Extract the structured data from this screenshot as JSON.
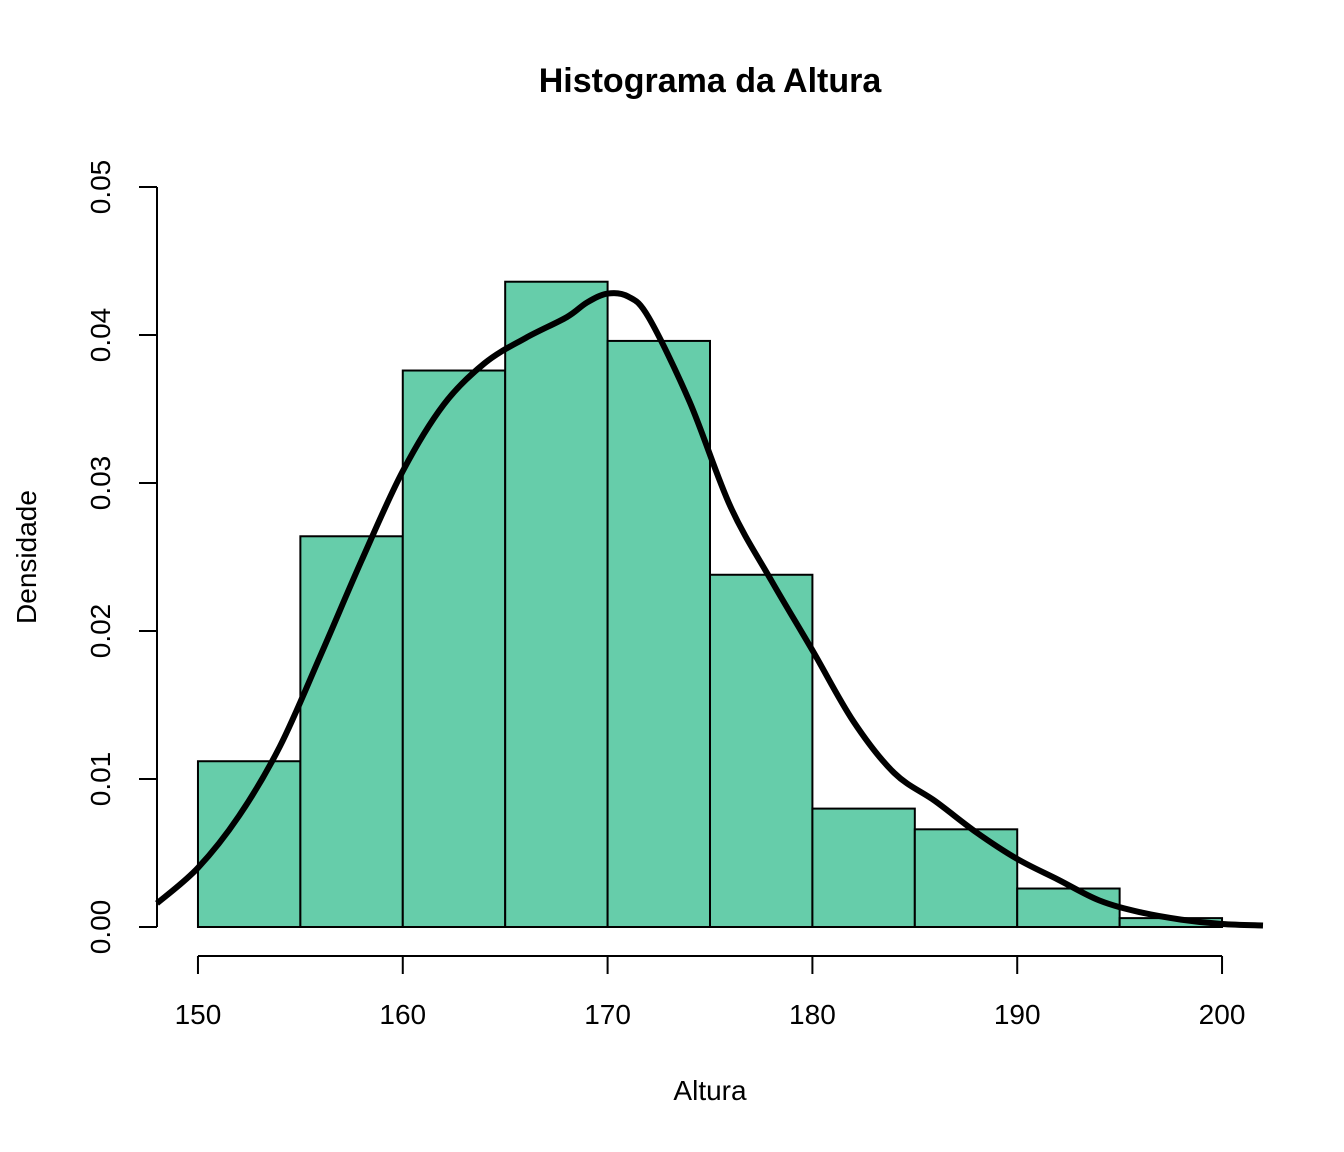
{
  "chart_data": {
    "type": "bar",
    "title": "Histograma da Altura",
    "xlabel": "Altura",
    "ylabel": "Densidade",
    "bin_edges": [
      150,
      155,
      160,
      165,
      170,
      175,
      180,
      185,
      190,
      195,
      200
    ],
    "values": [
      0.0112,
      0.0264,
      0.0376,
      0.0436,
      0.0396,
      0.0238,
      0.008,
      0.0066,
      0.0026,
      0.0006
    ],
    "bar_color": "#66CDAA",
    "xlim": [
      148,
      202
    ],
    "ylim": [
      0,
      0.05
    ],
    "x_ticks": [
      150,
      160,
      170,
      180,
      190,
      200
    ],
    "x_tick_labels": [
      "150",
      "160",
      "170",
      "180",
      "190",
      "200"
    ],
    "y_ticks": [
      0,
      0.01,
      0.02,
      0.03,
      0.04,
      0.05
    ],
    "y_tick_labels": [
      "0.00",
      "0.01",
      "0.02",
      "0.03",
      "0.04",
      "0.05"
    ],
    "grid": false,
    "density_curve": {
      "x": [
        148,
        150,
        152,
        154,
        156,
        158,
        160,
        162,
        164,
        166,
        168,
        169,
        170,
        171,
        172,
        174,
        176,
        178,
        180,
        182,
        184,
        186,
        188,
        190,
        192,
        194,
        196,
        198,
        200,
        202
      ],
      "y": [
        0.0016,
        0.004,
        0.0075,
        0.0122,
        0.0184,
        0.0248,
        0.0308,
        0.0353,
        0.0381,
        0.0398,
        0.0412,
        0.0422,
        0.0428,
        0.0426,
        0.0412,
        0.0355,
        0.0284,
        0.0234,
        0.0187,
        0.0139,
        0.0104,
        0.0085,
        0.0064,
        0.0046,
        0.0032,
        0.0018,
        0.001,
        0.0005,
        0.0002,
        0.0001
      ]
    }
  }
}
